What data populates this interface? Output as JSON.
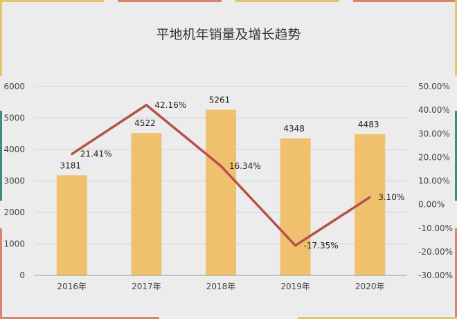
{
  "chart_data": {
    "type": "bar",
    "title": "平地机年销量及增长趋势",
    "categories": [
      "2016年",
      "2017年",
      "2018年",
      "2019年",
      "2020年"
    ],
    "series": [
      {
        "type": "bar",
        "values": [
          3181,
          4522,
          5261,
          4348,
          4483
        ],
        "labels": [
          "3181",
          "4522",
          "5261",
          "4348",
          "4483"
        ]
      },
      {
        "type": "line",
        "axis": "right",
        "values": [
          21.41,
          42.16,
          16.34,
          -17.35,
          3.1
        ],
        "labels": [
          "21.41%",
          "42.16%",
          "16.34%",
          "-17.35%",
          "3.10%"
        ]
      }
    ],
    "ylim": [
      0,
      6000
    ],
    "yticks": [
      "0",
      "1000",
      "2000",
      "3000",
      "4000",
      "5000",
      "6000"
    ],
    "y2lim": [
      -30,
      50
    ],
    "y2ticks": [
      "-30.00%",
      "-20.00%",
      "-10.00%",
      "0.00%",
      "10.00%",
      "20.00%",
      "30.00%",
      "40.00%",
      "50.00%"
    ],
    "grid": true,
    "colors": {
      "bar": "#efc06e",
      "line": "#b5504a",
      "grid": "#cfcfcf",
      "axis": "#9a9a9a"
    }
  }
}
